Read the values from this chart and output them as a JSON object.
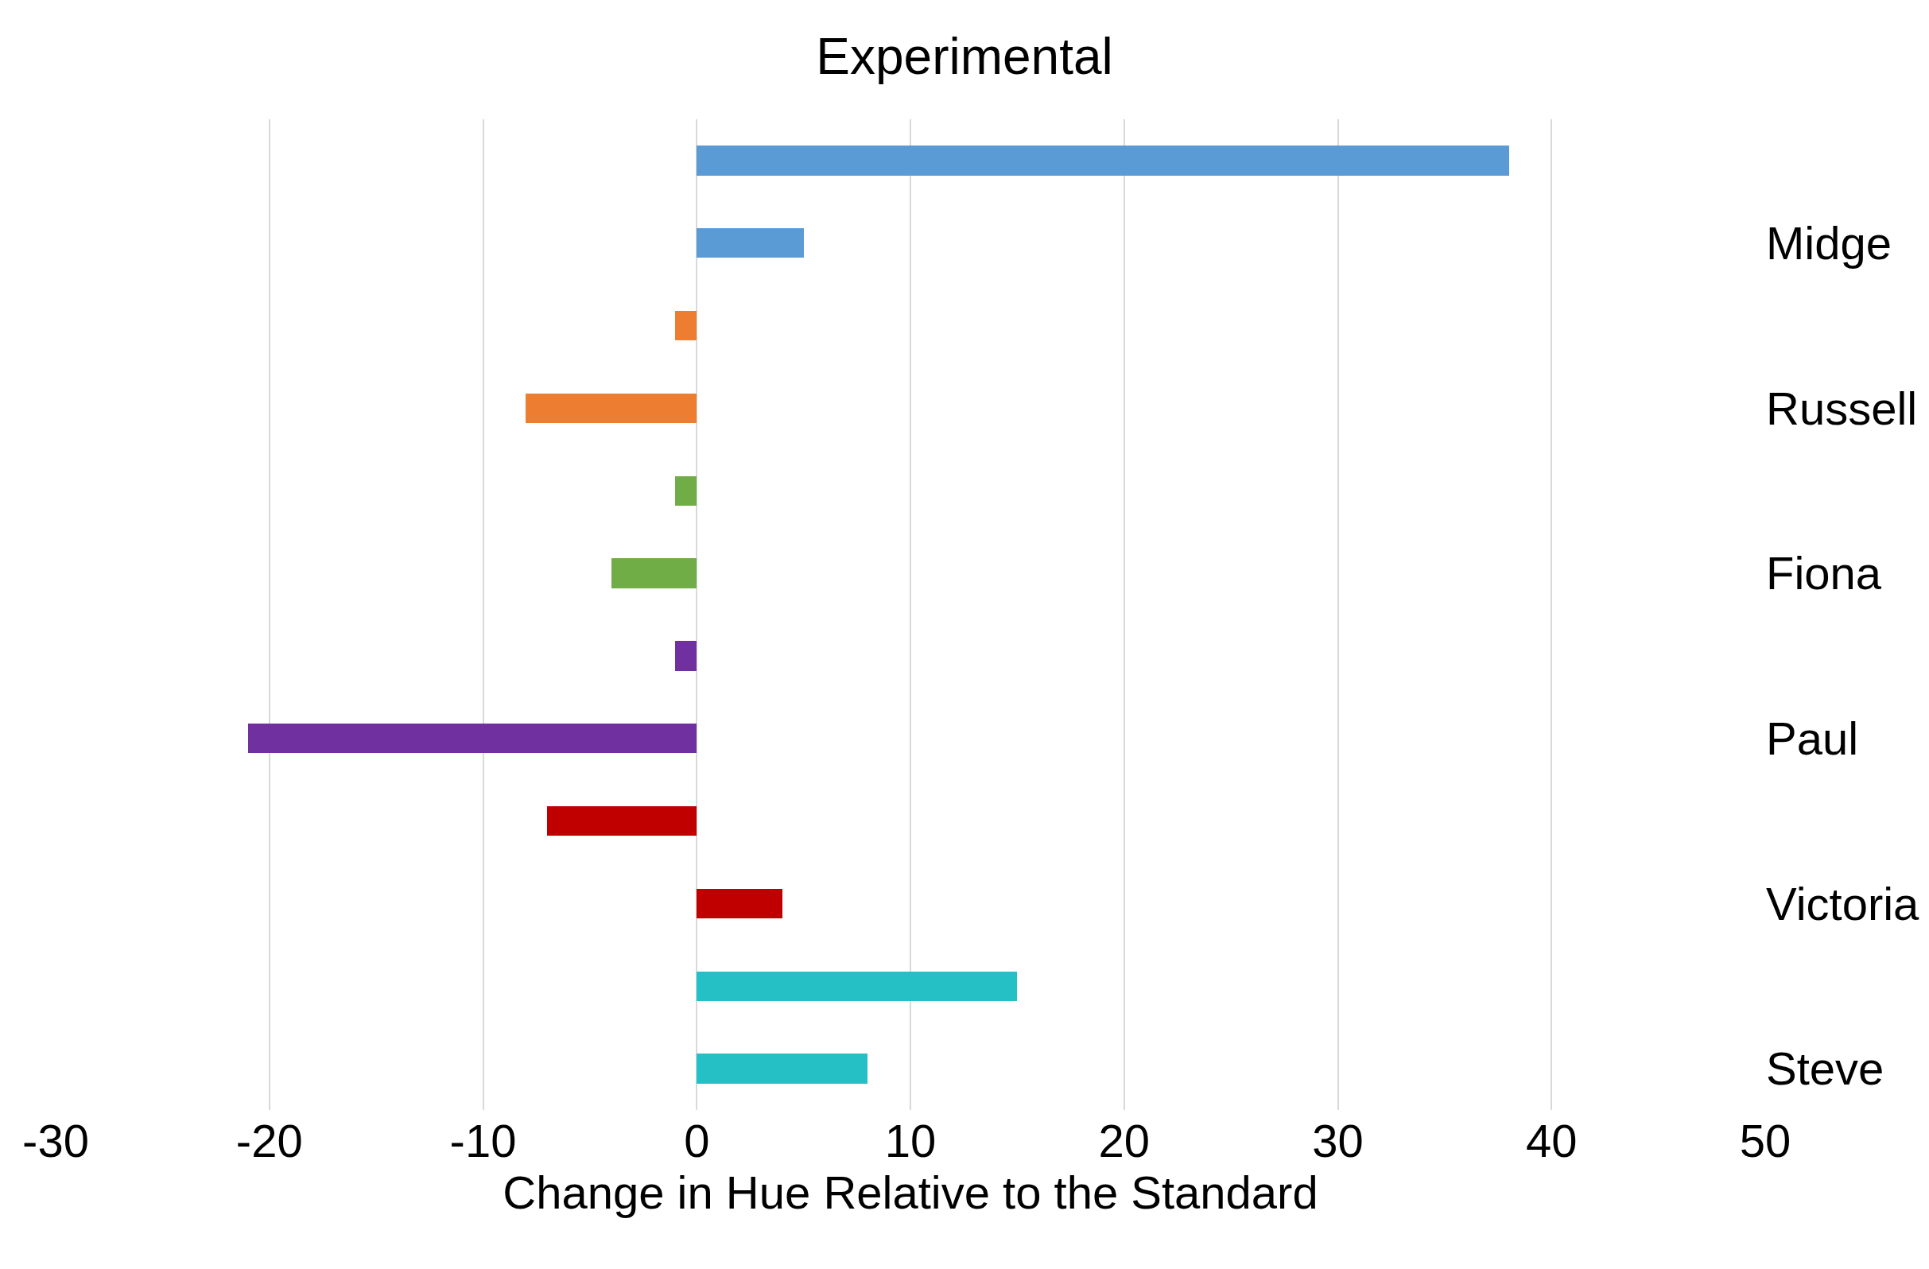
{
  "chart_data": {
    "type": "bar",
    "orientation": "horizontal",
    "title": "Experimental",
    "xlabel": "Change in Hue Relative to the Standard",
    "categories": [
      null,
      "Midge",
      null,
      "Russell",
      null,
      "Fiona",
      null,
      "Paul",
      null,
      "Victoria",
      null,
      "Steve"
    ],
    "values": [
      38,
      5,
      -1,
      -8,
      -1,
      -4,
      -1,
      -21,
      -7,
      4,
      15,
      8
    ],
    "colors": [
      "#5b9bd5",
      "#5b9bd5",
      "#ed7d31",
      "#ed7d31",
      "#70ad47",
      "#70ad47",
      "#7030a0",
      "#7030a0",
      "#c00000",
      "#c00000",
      "#25c0c6",
      "#25c0c6"
    ],
    "xlim": [
      -30,
      50
    ],
    "xticks": [
      -30,
      -20,
      -10,
      0,
      10,
      20,
      30,
      40,
      50
    ],
    "grid": "x",
    "legend": false
  }
}
